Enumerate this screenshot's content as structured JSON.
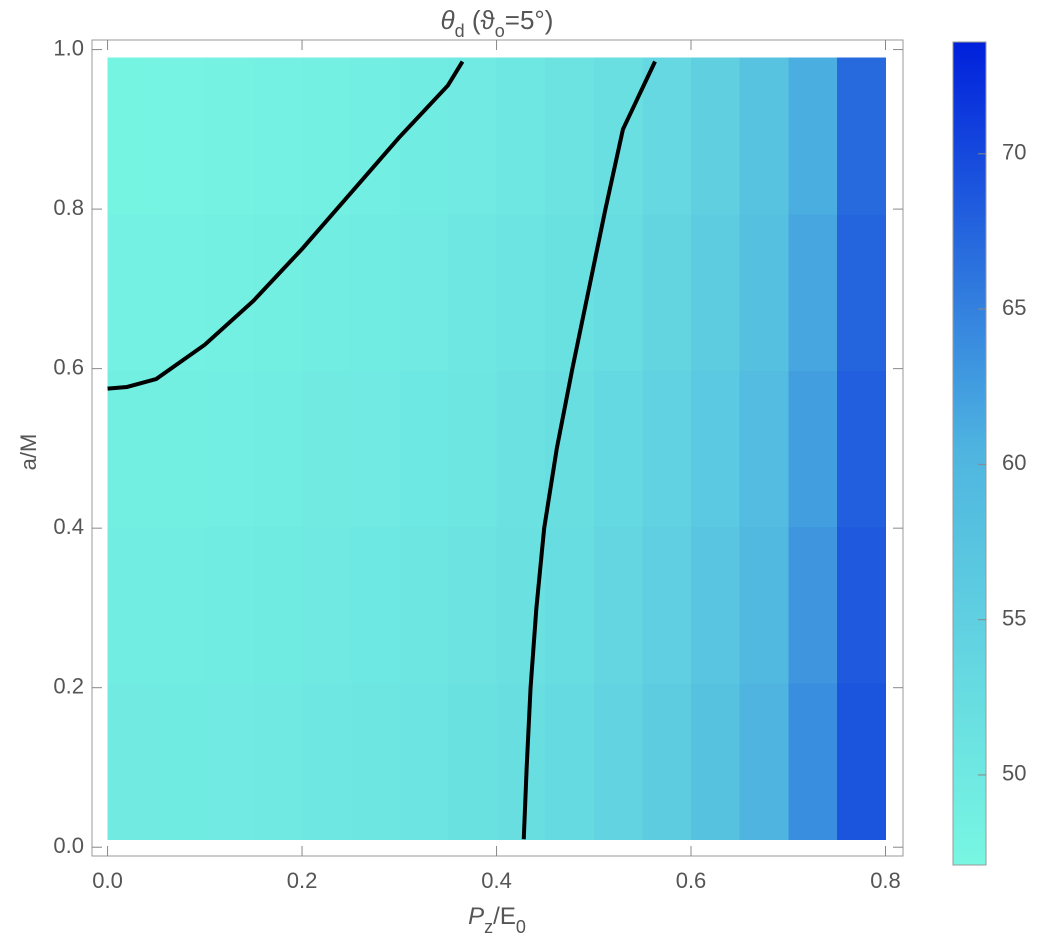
{
  "chart_data": {
    "type": "density",
    "title": [
      "θ",
      "d",
      "  (ϑ",
      "o",
      "=5°)"
    ],
    "x_label": [
      "P",
      "z",
      "/E",
      "0"
    ],
    "y_label": "a/M",
    "xlim": [
      -0.016,
      0.818
    ],
    "ylim": [
      -0.011,
      1.012
    ],
    "xticks": [
      {
        "value": 0,
        "label": "0.0"
      },
      0.2,
      0.4,
      0.6,
      0.8
    ],
    "yticks": [
      {
        "value": 0,
        "label": "0.0"
      },
      0.2,
      0.4,
      0.6,
      0.8,
      {
        "value": 1,
        "label": "1.0"
      }
    ],
    "xbins": [
      0,
      0.05,
      0.1,
      0.15,
      0.2,
      0.25,
      0.3,
      0.35,
      0.4,
      0.45,
      0.5,
      0.55,
      0.6,
      0.65,
      0.7,
      0.75,
      0.8
    ],
    "ybins": [
      0.01,
      0.206,
      0.402,
      0.598,
      0.794,
      0.99
    ],
    "z": [
      [
        49.5,
        49.6,
        49.8,
        50.0,
        50.3,
        50.6,
        51.0,
        51.5,
        52.1,
        53.0,
        54.2,
        55.8,
        57.8,
        60.3,
        63.8,
        69.0
      ],
      [
        49.1,
        49.2,
        49.4,
        49.6,
        49.9,
        50.2,
        50.6,
        51.1,
        51.7,
        52.6,
        53.7,
        55.2,
        57.1,
        59.6,
        63.1,
        68.5
      ],
      [
        48.7,
        48.8,
        49.0,
        49.2,
        49.5,
        49.8,
        50.2,
        50.7,
        51.3,
        52.1,
        53.1,
        54.6,
        56.4,
        58.9,
        62.4,
        68.0
      ],
      [
        48.3,
        48.4,
        48.6,
        48.8,
        49.1,
        49.4,
        49.8,
        50.3,
        50.9,
        51.6,
        52.6,
        54.0,
        55.7,
        58.2,
        61.7,
        67.5
      ],
      [
        47.8,
        47.9,
        48.1,
        48.3,
        48.6,
        48.9,
        49.3,
        49.8,
        50.4,
        51.1,
        52.0,
        53.3,
        55.0,
        57.5,
        61.0,
        67.0
      ]
    ],
    "colormap": [
      "#78f7e2",
      "#4fb5e0",
      "#0020dc"
    ],
    "clim": [
      47.1,
      73.6
    ],
    "cticks": [
      50,
      55,
      60,
      65,
      70
    ],
    "contours": [
      {
        "color": "#000000",
        "x": [
          0,
          0.02,
          0.05,
          0.1,
          0.15,
          0.2,
          0.25,
          0.3,
          0.35,
          0.365
        ],
        "y": [
          0.575,
          0.577,
          0.587,
          0.63,
          0.685,
          0.75,
          0.82,
          0.89,
          0.955,
          0.985
        ]
      },
      {
        "color": "#000000",
        "x": [
          0.428,
          0.431,
          0.435,
          0.441,
          0.449,
          0.462,
          0.478,
          0.495,
          0.512,
          0.53,
          0.563
        ],
        "y": [
          0.01,
          0.1,
          0.2,
          0.3,
          0.4,
          0.5,
          0.6,
          0.7,
          0.8,
          0.9,
          0.985
        ]
      }
    ]
  }
}
